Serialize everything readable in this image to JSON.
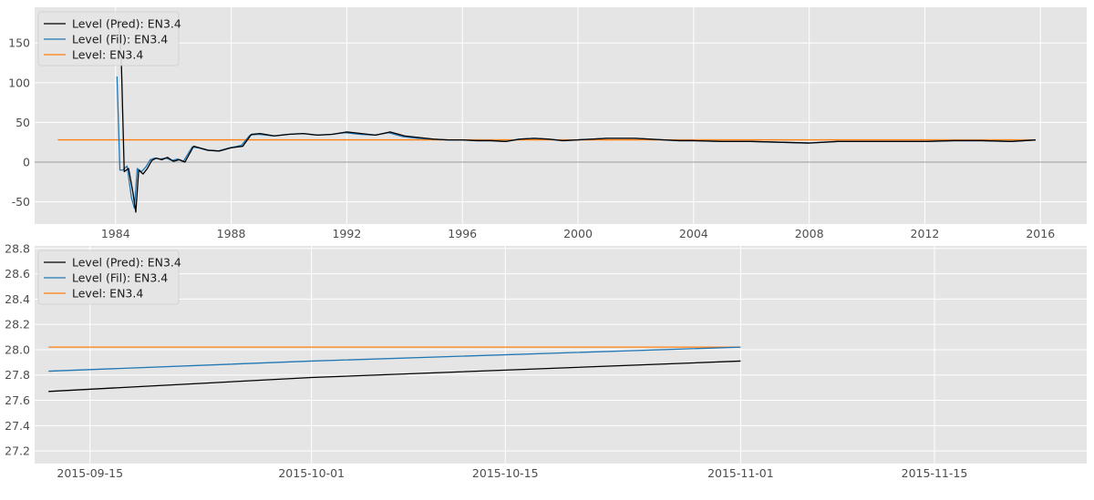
{
  "chart_data": [
    {
      "type": "line",
      "title": "",
      "xlabel": "",
      "ylabel": "",
      "x_type": "year",
      "xlim": [
        1981.2,
        2017.6
      ],
      "ylim": [
        -78,
        195
      ],
      "xticks": [
        1984,
        1988,
        1992,
        1996,
        2000,
        2004,
        2008,
        2012,
        2016
      ],
      "yticks": [
        -50,
        0,
        50,
        100,
        150
      ],
      "grid": true,
      "zero_line": true,
      "legend": {
        "position": "top-left",
        "entries": [
          "Level (Pred): EN3.4",
          "Level (Fil): EN3.4",
          "Level: EN3.4"
        ]
      },
      "series": [
        {
          "name": "Level (Pred): EN3.4",
          "color": "#000000",
          "x": [
            1984.1,
            1984.2,
            1984.3,
            1984.45,
            1984.6,
            1984.7,
            1984.8,
            1984.95,
            1985.1,
            1985.25,
            1985.4,
            1985.6,
            1985.8,
            1986.0,
            1986.2,
            1986.4,
            1986.7,
            1986.9,
            1987.2,
            1987.6,
            1988.0,
            1988.4,
            1988.7,
            1989.0,
            1989.5,
            1990.0,
            1990.5,
            1991.0,
            1991.5,
            1992.0,
            1992.5,
            1993.0,
            1993.5,
            1994.0,
            1994.5,
            1995.0,
            1995.5,
            1996.0,
            1996.5,
            1997.0,
            1997.5,
            1998.0,
            1998.5,
            1999.0,
            1999.5,
            2000.0,
            2000.5,
            2001.0,
            2001.5,
            2002.0,
            2002.5,
            2003.0,
            2003.5,
            2004.0,
            2005.0,
            2006.0,
            2007.0,
            2008.0,
            2009.0,
            2010.0,
            2011.0,
            2012.0,
            2013.0,
            2014.0,
            2015.0,
            2015.83
          ],
          "y": [
            180,
            126,
            -12,
            -8,
            -38,
            -63,
            -10,
            -15,
            -8,
            2,
            5,
            3,
            6,
            1,
            3,
            0,
            20,
            18,
            15,
            14,
            18,
            20,
            35,
            36,
            33,
            35,
            36,
            34,
            35,
            38,
            36,
            34,
            38,
            33,
            31,
            29,
            28,
            28,
            27,
            27,
            26,
            29,
            30,
            29,
            27,
            28,
            29,
            30,
            30,
            30,
            29,
            28,
            27,
            27,
            26,
            26,
            25,
            24,
            26,
            26,
            26,
            26,
            27,
            27,
            26,
            27.9
          ]
        },
        {
          "name": "Level (Fil): EN3.4",
          "color": "#1f77b4",
          "x": [
            1984.05,
            1984.15,
            1984.25,
            1984.4,
            1984.55,
            1984.65,
            1984.75,
            1984.9,
            1985.05,
            1985.2,
            1985.35,
            1985.55,
            1985.75,
            1985.95,
            1986.15,
            1986.35,
            1986.65,
            1986.85,
            1987.15,
            1987.55,
            1987.95,
            1988.35,
            1988.65,
            1988.95,
            1989.45,
            1989.95,
            1990.45,
            1990.95,
            1991.45,
            1991.95,
            1992.45,
            1992.95,
            1993.45,
            1993.95,
            1994.45,
            1994.95,
            1995.45,
            1995.95,
            1996.45,
            1996.95,
            1997.45,
            1997.95,
            1998.45,
            1998.95,
            1999.45,
            1999.95,
            2000.45,
            2000.95,
            2001.45,
            2001.95,
            2002.45,
            2002.95,
            2003.45,
            2003.95,
            2004.95,
            2005.95,
            2006.95,
            2007.95,
            2008.95,
            2009.95,
            2010.95,
            2011.95,
            2012.95,
            2013.95,
            2014.95,
            2015.83
          ],
          "y": [
            108,
            -10,
            -10,
            -5,
            -45,
            -58,
            -8,
            -12,
            -6,
            3,
            5,
            4,
            5,
            2,
            4,
            1,
            19,
            18,
            15,
            14,
            18,
            21,
            34,
            35,
            33,
            35,
            36,
            34,
            35,
            37,
            35,
            34,
            37,
            32,
            30,
            29,
            28,
            28,
            27,
            27,
            26,
            29,
            30,
            29,
            27,
            28,
            29,
            30,
            30,
            30,
            29,
            28,
            27,
            27,
            26,
            26,
            25,
            24,
            26,
            26,
            26,
            26,
            27,
            27,
            26,
            28.02
          ]
        },
        {
          "name": "Level: EN3.4",
          "color": "#ff7f0e",
          "x": [
            1982.0,
            2015.83
          ],
          "y": [
            28.02,
            28.02
          ]
        }
      ]
    },
    {
      "type": "line",
      "title": "",
      "xlabel": "",
      "ylabel": "",
      "x_type": "date",
      "xlim": [
        "2015-09-11",
        "2015-11-26"
      ],
      "ylim": [
        27.1,
        28.82
      ],
      "xticks": [
        "2015-09-15",
        "2015-10-01",
        "2015-10-15",
        "2015-11-01",
        "2015-11-15"
      ],
      "yticks": [
        27.2,
        27.4,
        27.6,
        27.8,
        28.0,
        28.2,
        28.4,
        28.6,
        28.8
      ],
      "grid": true,
      "legend": {
        "position": "top-left",
        "entries": [
          "Level (Pred): EN3.4",
          "Level (Fil): EN3.4",
          "Level: EN3.4"
        ]
      },
      "series": [
        {
          "name": "Level (Pred): EN3.4",
          "color": "#000000",
          "x": [
            "2015-09-12",
            "2015-10-01",
            "2015-11-01"
          ],
          "y": [
            27.67,
            27.78,
            27.91
          ]
        },
        {
          "name": "Level (Fil): EN3.4",
          "color": "#1f77b4",
          "x": [
            "2015-09-12",
            "2015-10-01",
            "2015-11-01"
          ],
          "y": [
            27.83,
            27.91,
            28.02
          ]
        },
        {
          "name": "Level: EN3.4",
          "color": "#ff7f0e",
          "x": [
            "2015-09-12",
            "2015-11-01"
          ],
          "y": [
            28.02,
            28.02
          ]
        }
      ]
    }
  ]
}
